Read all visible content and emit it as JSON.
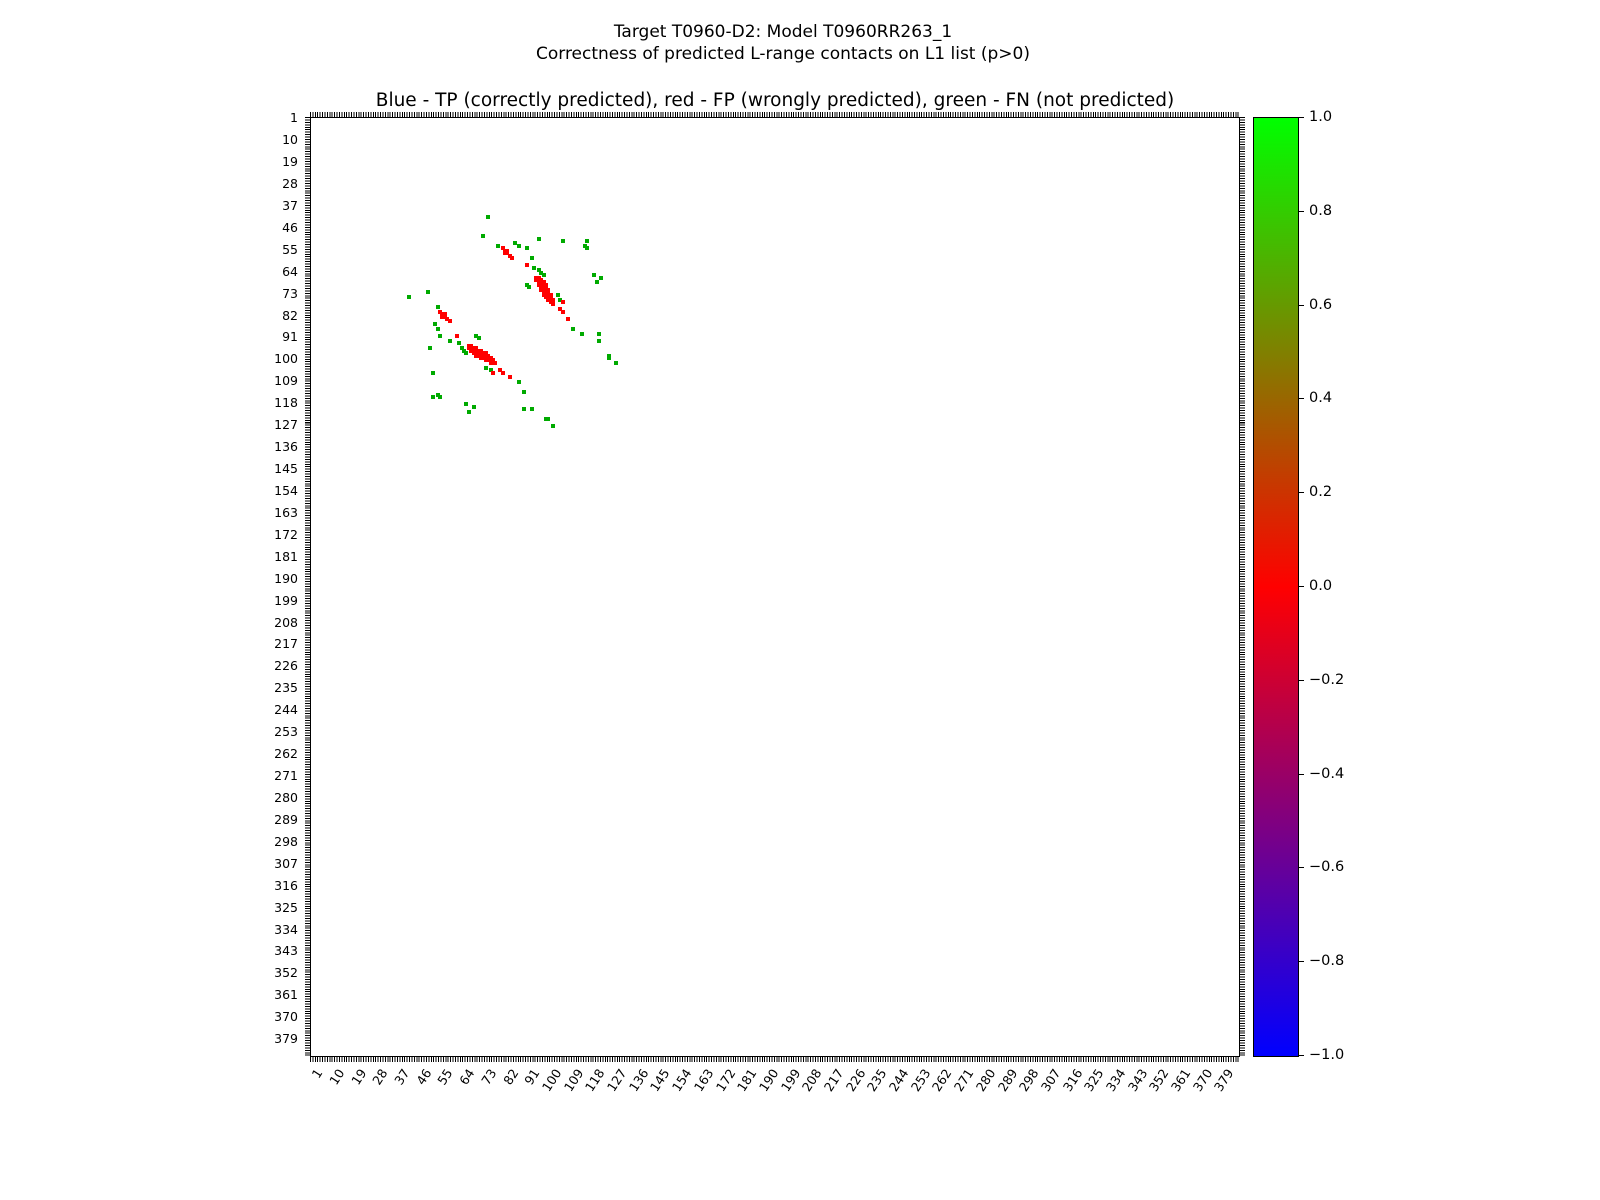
{
  "figure": {
    "suptitle_line1": "Target T0960-D2: Model T0960RR263_1",
    "suptitle_line2": "Correctness of predicted L-range contacts on L1 list (p>0)",
    "plot_title": "Blue - TP (correctly predicted), red - FP (wrongly predicted), green - FN (not predicted)"
  },
  "chart_data": {
    "type": "heatmap",
    "title": "Blue - TP (correctly predicted), red - FP (wrongly predicted), green - FN (not predicted)",
    "xlabel": "",
    "ylabel": "",
    "axis_min": 1,
    "axis_max": 385,
    "grid": false,
    "symmetric": true,
    "x_ticks": [
      1,
      10,
      19,
      28,
      37,
      46,
      55,
      64,
      73,
      82,
      91,
      100,
      109,
      118,
      127,
      136,
      145,
      154,
      163,
      172,
      181,
      190,
      199,
      208,
      217,
      226,
      235,
      244,
      253,
      262,
      271,
      280,
      289,
      298,
      307,
      316,
      325,
      334,
      343,
      352,
      361,
      370,
      379
    ],
    "y_ticks": [
      1,
      10,
      19,
      28,
      37,
      46,
      55,
      64,
      73,
      82,
      91,
      100,
      109,
      118,
      127,
      136,
      145,
      154,
      163,
      172,
      181,
      190,
      199,
      208,
      217,
      226,
      235,
      244,
      253,
      262,
      271,
      280,
      289,
      298,
      307,
      316,
      325,
      334,
      343,
      352,
      361,
      370,
      379
    ],
    "legend": [
      {
        "class": "TP",
        "meaning": "correctly predicted",
        "color_name": "blue"
      },
      {
        "class": "FP",
        "meaning": "wrongly predicted",
        "color_name": "red"
      },
      {
        "class": "FN",
        "meaning": "not predicted",
        "color_name": "green"
      }
    ],
    "colors": {
      "tp": "#0000ff",
      "fp": "#ff0000",
      "fn": "#00aa00"
    },
    "points": {
      "tp": [],
      "fp": [
        [
          54,
          80
        ],
        [
          55,
          81
        ],
        [
          55,
          82
        ],
        [
          56,
          81
        ],
        [
          56,
          82
        ],
        [
          57,
          83
        ],
        [
          58,
          84
        ],
        [
          61,
          90
        ],
        [
          66,
          94
        ],
        [
          66,
          95
        ],
        [
          67,
          94
        ],
        [
          67,
          95
        ],
        [
          67,
          96
        ],
        [
          68,
          95
        ],
        [
          68,
          96
        ],
        [
          68,
          97
        ],
        [
          69,
          95
        ],
        [
          69,
          96
        ],
        [
          69,
          97
        ],
        [
          69,
          98
        ],
        [
          70,
          96
        ],
        [
          70,
          97
        ],
        [
          70,
          98
        ],
        [
          71,
          96
        ],
        [
          71,
          97
        ],
        [
          71,
          98
        ],
        [
          71,
          99
        ],
        [
          72,
          97
        ],
        [
          72,
          98
        ],
        [
          72,
          99
        ],
        [
          73,
          97
        ],
        [
          73,
          98
        ],
        [
          73,
          99
        ],
        [
          73,
          100
        ],
        [
          74,
          98
        ],
        [
          74,
          99
        ],
        [
          74,
          100
        ],
        [
          75,
          99
        ],
        [
          75,
          100
        ],
        [
          75,
          101
        ],
        [
          76,
          100
        ],
        [
          76,
          101
        ],
        [
          77,
          101
        ],
        [
          76,
          105
        ],
        [
          79,
          104
        ],
        [
          80,
          105
        ],
        [
          83,
          107
        ]
      ],
      "fn": [
        [
          41,
          74
        ],
        [
          49,
          72
        ],
        [
          50,
          95
        ],
        [
          51,
          105
        ],
        [
          51,
          115
        ],
        [
          52,
          85
        ],
        [
          53,
          78
        ],
        [
          53,
          87
        ],
        [
          53,
          114
        ],
        [
          54,
          90
        ],
        [
          54,
          115
        ],
        [
          58,
          92
        ],
        [
          62,
          93
        ],
        [
          63,
          95
        ],
        [
          64,
          96
        ],
        [
          65,
          97
        ],
        [
          65,
          118
        ],
        [
          66,
          121
        ],
        [
          68,
          119
        ],
        [
          69,
          90
        ],
        [
          70,
          91
        ],
        [
          73,
          103
        ],
        [
          75,
          104
        ],
        [
          87,
          109
        ],
        [
          89,
          113
        ],
        [
          89,
          120
        ],
        [
          92,
          120
        ],
        [
          98,
          124
        ],
        [
          99,
          124
        ],
        [
          101,
          127
        ]
      ]
    },
    "colorbar": {
      "min": -1.0,
      "max": 1.0,
      "tick_labels": [
        "1.0",
        "0.8",
        "0.6",
        "0.4",
        "0.2",
        "0.0",
        "−0.2",
        "−0.4",
        "−0.6",
        "−0.8",
        "−1.0"
      ],
      "gradient_stops": [
        "#00ff00",
        "#808000",
        "#ff0000",
        "#800080",
        "#0000ff"
      ]
    }
  }
}
